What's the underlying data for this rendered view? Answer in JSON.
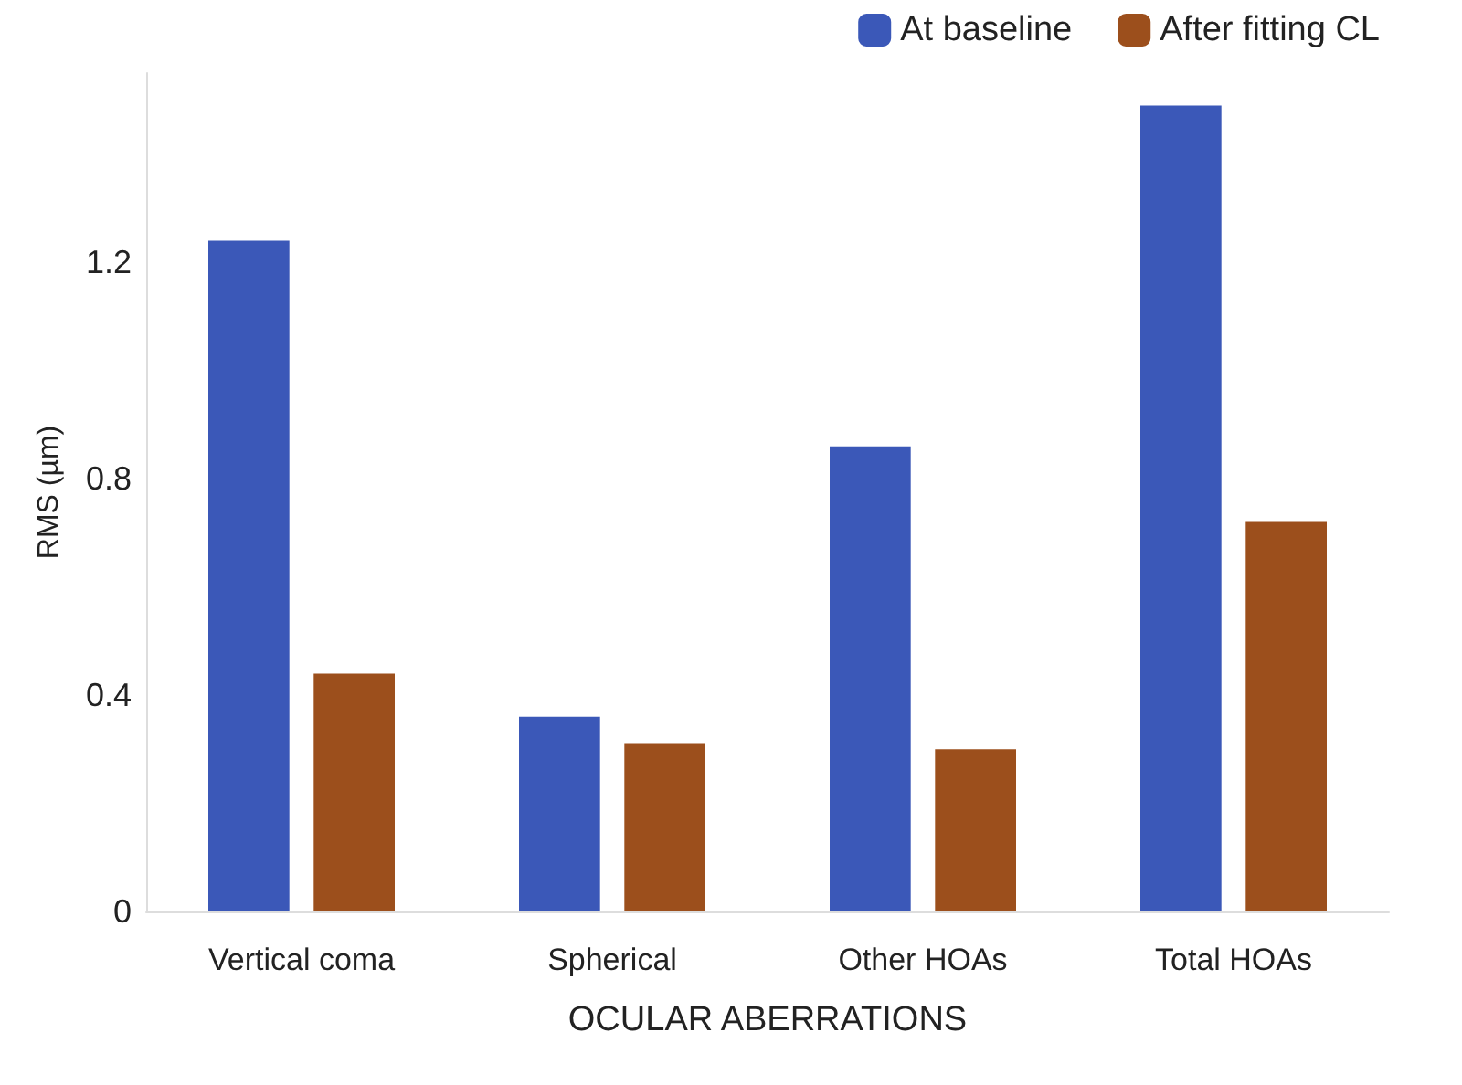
{
  "chart_data": {
    "type": "bar",
    "xlabel": "OCULAR ABERRATIONS",
    "ylabel": "RMS (µm)",
    "categories": [
      "Vertical coma",
      "Spherical",
      "Other HOAs",
      "Total HOAs"
    ],
    "series": [
      {
        "name": "At baseline",
        "color": "#3b58b8",
        "values": [
          1.24,
          0.36,
          0.86,
          1.49
        ]
      },
      {
        "name": "After fitting CL",
        "color": "#9c4f1c",
        "values": [
          0.44,
          0.31,
          0.3,
          0.72
        ]
      }
    ],
    "ylim": [
      0,
      1.55
    ],
    "yticks": [
      0,
      0.4,
      0.8,
      1.2
    ],
    "grid": false,
    "legend": "top right"
  }
}
